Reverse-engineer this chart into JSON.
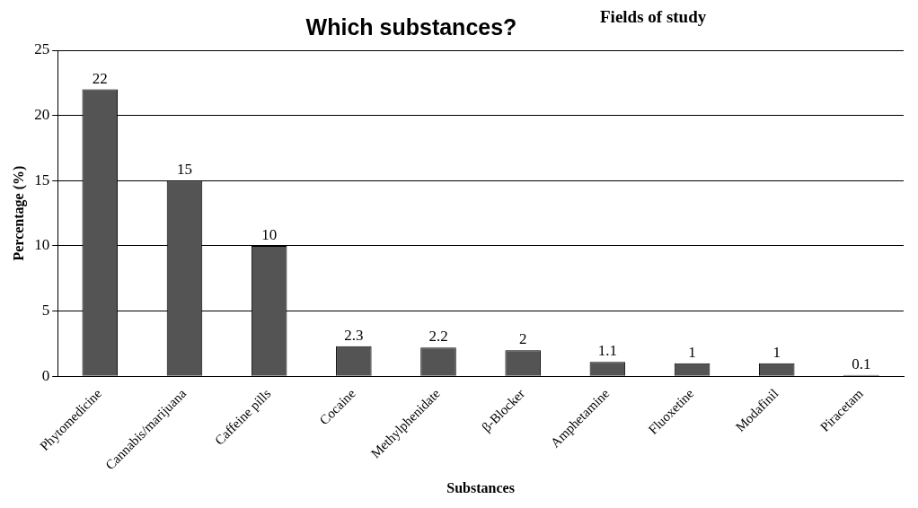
{
  "chart_data": {
    "type": "bar",
    "title": "Which substances?",
    "subtitle": "Fields of study",
    "xlabel": "Substances",
    "ylabel": "Percentage (%)",
    "categories": [
      "Phytomedicine",
      "Cannabis/marijuana",
      "Caffeine pills",
      "Cocaine",
      "Methylphenidate",
      "β-Blocker",
      "Amphetamine",
      "Fluoxetine",
      "Modafinil",
      "Piracetam"
    ],
    "values": [
      22,
      15,
      10,
      2.3,
      2.2,
      2,
      1.1,
      1,
      1,
      0.1
    ],
    "color": "#545454",
    "ylim": [
      0,
      25
    ],
    "yticks": [
      0,
      5,
      10,
      15,
      20,
      25
    ],
    "grid": "y",
    "data_labels": true
  }
}
